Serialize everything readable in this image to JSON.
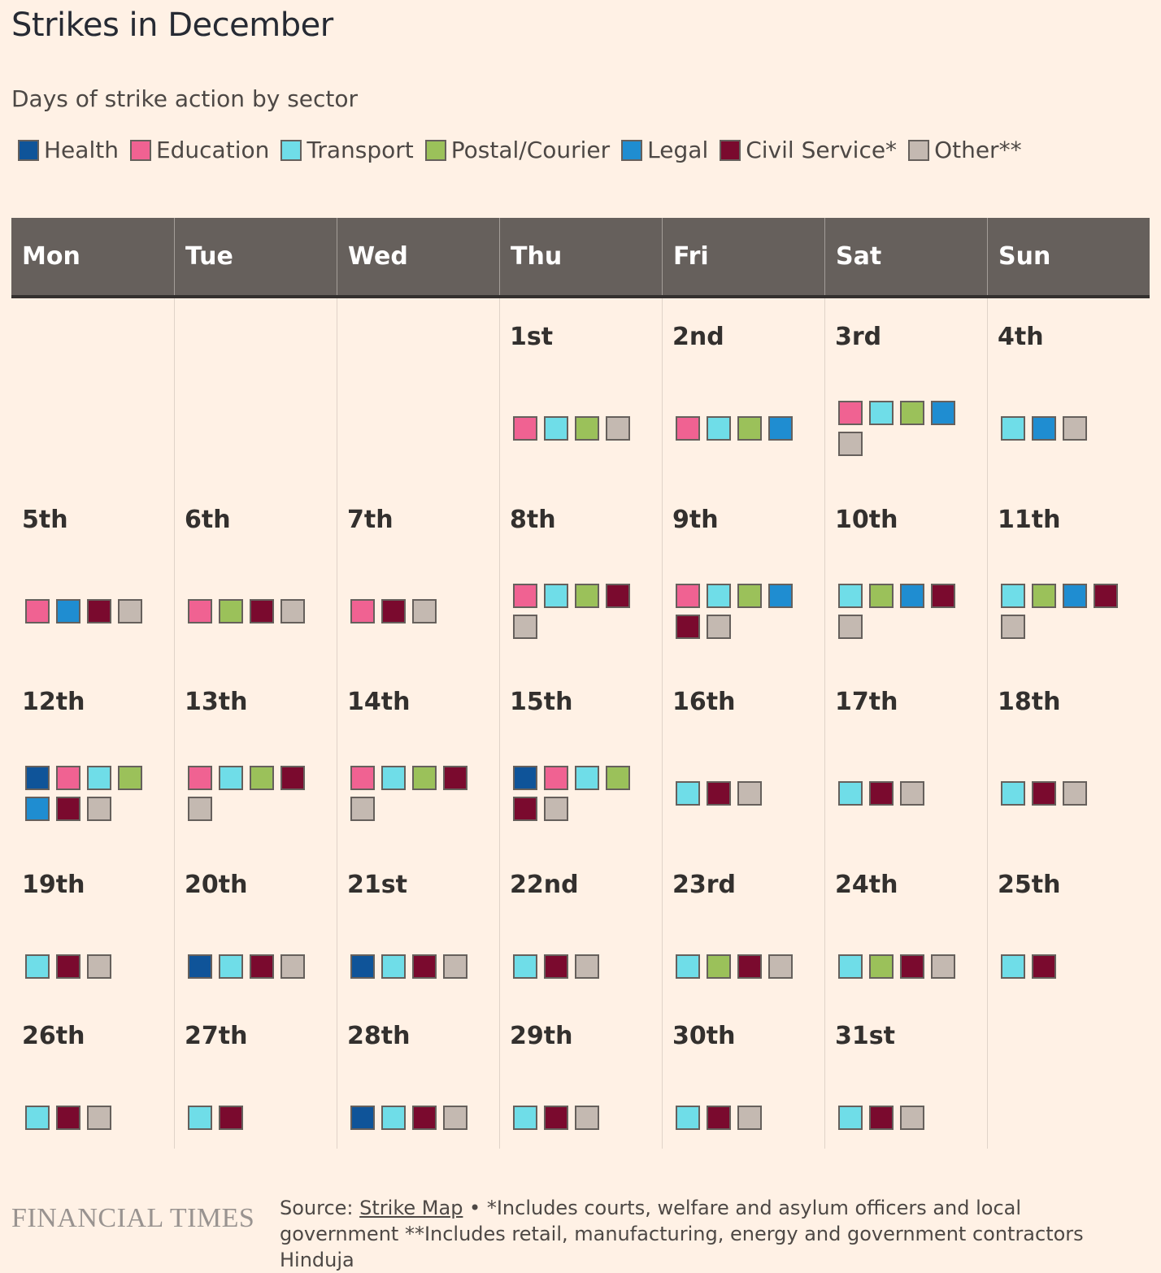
{
  "title": "Strikes in December",
  "subtitle": "Days of strike action by sector",
  "legend": [
    {
      "key": "health",
      "label": "Health",
      "color": "#0f5499"
    },
    {
      "key": "education",
      "label": "Education",
      "color": "#f06292"
    },
    {
      "key": "transport",
      "label": "Transport",
      "color": "#6fdde8"
    },
    {
      "key": "postal",
      "label": "Postal/Courier",
      "color": "#9bc15a"
    },
    {
      "key": "legal",
      "label": "Legal",
      "color": "#1f8dd1"
    },
    {
      "key": "civil",
      "label": "Civil Service*",
      "color": "#7a0a2e"
    },
    {
      "key": "other",
      "label": "Other**",
      "color": "#c4b9b1"
    }
  ],
  "weekdays": [
    "Mon",
    "Tue",
    "Wed",
    "Thu",
    "Fri",
    "Sat",
    "Sun"
  ],
  "chart_data": {
    "type": "table",
    "title": "Strikes in December",
    "subtitle": "Days of strike action by sector",
    "first_weekday_index": 3,
    "days": [
      {
        "date": "1st",
        "sectors": [
          "education",
          "transport",
          "postal",
          "other"
        ]
      },
      {
        "date": "2nd",
        "sectors": [
          "education",
          "transport",
          "postal",
          "legal"
        ]
      },
      {
        "date": "3rd",
        "sectors": [
          "education",
          "transport",
          "postal",
          "legal",
          "other"
        ]
      },
      {
        "date": "4th",
        "sectors": [
          "transport",
          "legal",
          "other"
        ]
      },
      {
        "date": "5th",
        "sectors": [
          "education",
          "legal",
          "civil",
          "other"
        ]
      },
      {
        "date": "6th",
        "sectors": [
          "education",
          "postal",
          "civil",
          "other"
        ]
      },
      {
        "date": "7th",
        "sectors": [
          "education",
          "civil",
          "other"
        ]
      },
      {
        "date": "8th",
        "sectors": [
          "education",
          "transport",
          "postal",
          "civil",
          "other"
        ]
      },
      {
        "date": "9th",
        "sectors": [
          "education",
          "transport",
          "postal",
          "legal",
          "civil",
          "other"
        ]
      },
      {
        "date": "10th",
        "sectors": [
          "transport",
          "postal",
          "legal",
          "civil",
          "other"
        ]
      },
      {
        "date": "11th",
        "sectors": [
          "transport",
          "postal",
          "legal",
          "civil",
          "other"
        ]
      },
      {
        "date": "12th",
        "sectors": [
          "health",
          "education",
          "transport",
          "postal",
          "legal",
          "civil",
          "other"
        ]
      },
      {
        "date": "13th",
        "sectors": [
          "education",
          "transport",
          "postal",
          "civil",
          "other"
        ]
      },
      {
        "date": "14th",
        "sectors": [
          "education",
          "transport",
          "postal",
          "civil",
          "other"
        ]
      },
      {
        "date": "15th",
        "sectors": [
          "health",
          "education",
          "transport",
          "postal",
          "civil",
          "other"
        ]
      },
      {
        "date": "16th",
        "sectors": [
          "transport",
          "civil",
          "other"
        ]
      },
      {
        "date": "17th",
        "sectors": [
          "transport",
          "civil",
          "other"
        ]
      },
      {
        "date": "18th",
        "sectors": [
          "transport",
          "civil",
          "other"
        ]
      },
      {
        "date": "19th",
        "sectors": [
          "transport",
          "civil",
          "other"
        ]
      },
      {
        "date": "20th",
        "sectors": [
          "health",
          "transport",
          "civil",
          "other"
        ]
      },
      {
        "date": "21st",
        "sectors": [
          "health",
          "transport",
          "civil",
          "other"
        ]
      },
      {
        "date": "22nd",
        "sectors": [
          "transport",
          "civil",
          "other"
        ]
      },
      {
        "date": "23rd",
        "sectors": [
          "transport",
          "postal",
          "civil",
          "other"
        ]
      },
      {
        "date": "24th",
        "sectors": [
          "transport",
          "postal",
          "civil",
          "other"
        ]
      },
      {
        "date": "25th",
        "sectors": [
          "transport",
          "civil"
        ]
      },
      {
        "date": "26th",
        "sectors": [
          "transport",
          "civil",
          "other"
        ]
      },
      {
        "date": "27th",
        "sectors": [
          "transport",
          "civil"
        ]
      },
      {
        "date": "28th",
        "sectors": [
          "health",
          "transport",
          "civil",
          "other"
        ]
      },
      {
        "date": "29th",
        "sectors": [
          "transport",
          "civil",
          "other"
        ]
      },
      {
        "date": "30th",
        "sectors": [
          "transport",
          "civil",
          "other"
        ]
      },
      {
        "date": "31st",
        "sectors": [
          "transport",
          "civil",
          "other"
        ]
      }
    ]
  },
  "footer": {
    "logo": "FINANCIAL TIMES",
    "source_prefix": "Source: ",
    "source_link": "Strike Map",
    "source_note": " • *Includes courts, welfare and asylum officers and local government **Includes retail, manufacturing, energy and government contractors Hinduja"
  }
}
